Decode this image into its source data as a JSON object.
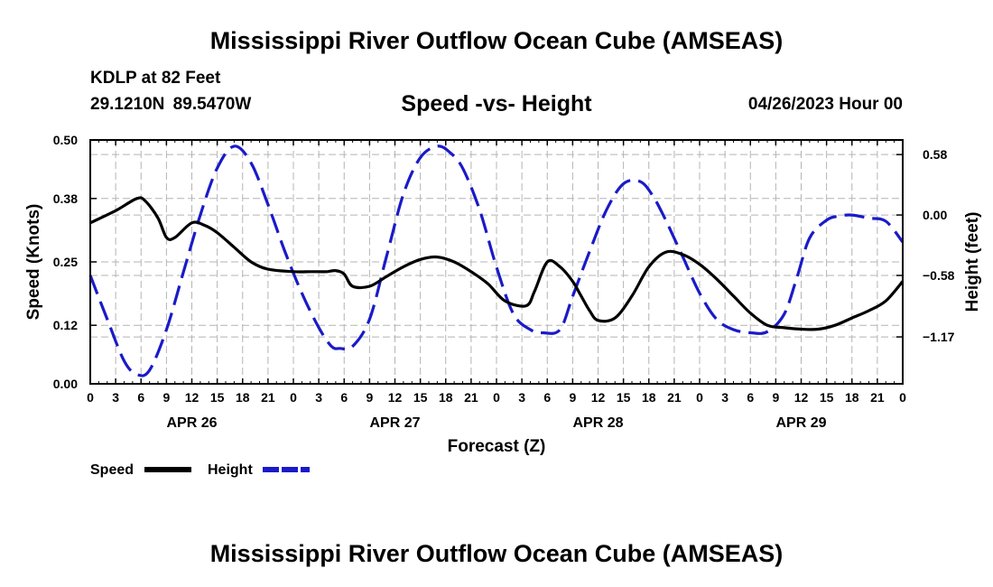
{
  "header": {
    "title_top": "Mississippi River Outflow Ocean Cube (AMSEAS)",
    "title_bottom": "Mississippi River Outflow Ocean Cube (AMSEAS)",
    "station": "KDLP at 82 Feet",
    "latlon": "29.1210N  89.5470W",
    "subtitle": "Speed -vs- Height",
    "datetime": "04/26/2023 Hour 00"
  },
  "colors": {
    "speed": "#000000",
    "height": "#1a1ac8",
    "grid": "#b4b4b4"
  },
  "chart_data": {
    "type": "line",
    "title": "Speed -vs- Height",
    "xlabel": "Forecast (Z)",
    "ylabel": "Speed (Knots)",
    "y2label": "Height (feet)",
    "x_range": [
      0,
      96
    ],
    "ylim": [
      0,
      0.5
    ],
    "y2lim": [
      -1.62,
      0.72
    ],
    "y_ticks": [
      0.0,
      0.12,
      0.25,
      0.38,
      0.5
    ],
    "y_tick_labels": [
      "0.00",
      "0.12",
      "0.25",
      "0.38",
      "0.50"
    ],
    "y2_ticks": [
      -1.17,
      -0.58,
      0.0,
      0.58
    ],
    "y2_tick_labels": [
      "−1.17",
      "−0.58",
      "0.00",
      "0.58"
    ],
    "x_ticks": [
      0,
      3,
      6,
      9,
      12,
      15,
      18,
      21,
      24,
      27,
      30,
      33,
      36,
      39,
      42,
      45,
      48,
      51,
      54,
      57,
      60,
      63,
      66,
      69,
      72,
      75,
      78,
      81,
      84,
      87,
      90,
      93,
      96
    ],
    "x_tick_labels": [
      "0",
      "3",
      "6",
      "9",
      "12",
      "15",
      "18",
      "21",
      "0",
      "3",
      "6",
      "9",
      "12",
      "15",
      "18",
      "21",
      "0",
      "3",
      "6",
      "9",
      "12",
      "15",
      "18",
      "21",
      "0",
      "3",
      "6",
      "9",
      "12",
      "15",
      "18",
      "21",
      "0"
    ],
    "day_labels": [
      {
        "label": "APR 26",
        "x": 12
      },
      {
        "label": "APR 27",
        "x": 36
      },
      {
        "label": "APR 28",
        "x": 60
      },
      {
        "label": "APR 29",
        "x": 84
      }
    ],
    "grid": true,
    "series": [
      {
        "name": "Speed",
        "axis": "left",
        "style": "solid",
        "x": [
          0,
          3,
          5.5,
          6.5,
          8,
          9,
          10,
          12,
          13.5,
          15,
          17,
          19,
          21,
          24,
          26,
          27,
          28,
          29,
          30,
          31,
          33,
          35,
          37,
          39,
          41,
          43,
          45,
          47,
          49,
          51.5,
          52.5,
          54,
          55.5,
          57,
          58,
          59,
          60,
          62,
          64,
          66,
          68,
          70,
          72,
          74,
          76,
          78,
          80,
          82,
          84,
          86,
          88,
          90,
          92,
          94,
          96
        ],
        "values": [
          0.33,
          0.355,
          0.38,
          0.375,
          0.34,
          0.3,
          0.3,
          0.33,
          0.325,
          0.31,
          0.28,
          0.25,
          0.235,
          0.23,
          0.23,
          0.23,
          0.23,
          0.232,
          0.225,
          0.2,
          0.2,
          0.22,
          0.24,
          0.255,
          0.26,
          0.25,
          0.23,
          0.205,
          0.17,
          0.16,
          0.19,
          0.25,
          0.24,
          0.21,
          0.18,
          0.15,
          0.13,
          0.135,
          0.18,
          0.24,
          0.27,
          0.265,
          0.245,
          0.215,
          0.18,
          0.145,
          0.12,
          0.115,
          0.112,
          0.112,
          0.12,
          0.135,
          0.15,
          0.17,
          0.21
        ]
      },
      {
        "name": "Height",
        "axis": "right",
        "style": "dashed",
        "x": [
          0,
          2,
          4,
          5.5,
          7,
          9,
          11,
          13,
          15,
          17,
          19,
          21,
          23,
          25,
          27,
          28.5,
          29.5,
          31,
          33,
          35,
          37,
          39,
          41,
          42.5,
          44,
          46,
          48,
          50,
          52,
          53.5,
          55.5,
          57,
          59,
          61,
          63,
          65,
          66.5,
          68,
          70,
          72,
          74,
          76,
          78,
          80,
          82,
          83.5,
          85,
          87,
          88.5,
          90,
          92,
          94,
          96
        ],
        "values": [
          -0.58,
          -1.0,
          -1.4,
          -1.53,
          -1.49,
          -1.1,
          -0.55,
          0.0,
          0.45,
          0.66,
          0.5,
          0.1,
          -0.35,
          -0.75,
          -1.08,
          -1.26,
          -1.28,
          -1.26,
          -1.0,
          -0.4,
          0.2,
          0.55,
          0.66,
          0.6,
          0.45,
          0.05,
          -0.5,
          -0.95,
          -1.1,
          -1.13,
          -1.1,
          -0.78,
          -0.35,
          0.05,
          0.3,
          0.32,
          0.18,
          -0.05,
          -0.4,
          -0.75,
          -1.0,
          -1.1,
          -1.13,
          -1.12,
          -0.95,
          -0.6,
          -0.22,
          -0.05,
          -0.01,
          0.0,
          -0.03,
          -0.06,
          -0.26
        ]
      }
    ],
    "legend": [
      {
        "label": "Speed",
        "style": "solid"
      },
      {
        "label": "Height",
        "style": "dashed"
      }
    ],
    "legend_position": "bottom-left"
  }
}
